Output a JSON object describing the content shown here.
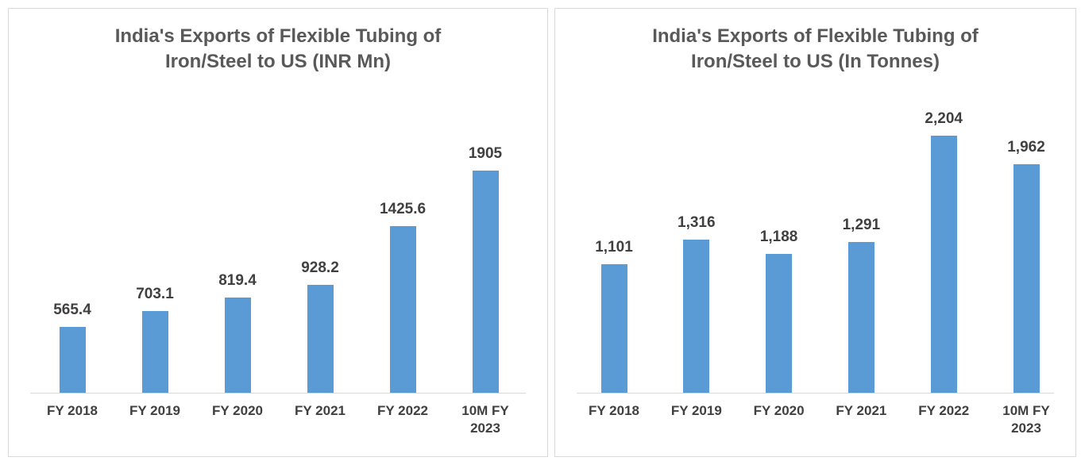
{
  "chart_data": [
    {
      "type": "bar",
      "title": "India's Exports of Flexible Tubing of Iron/Steel to US (INR Mn)",
      "categories": [
        "FY 2018",
        "FY 2019",
        "FY 2020",
        "FY 2021",
        "FY 2022",
        "10M FY 2023"
      ],
      "values": [
        565.4,
        703.1,
        819.4,
        928.2,
        1425.6,
        1905
      ],
      "color": "#5b9bd5",
      "ylim": [
        0,
        2000
      ]
    },
    {
      "type": "bar",
      "title": "India's Exports of Flexible Tubing of Iron/Steel to US (In Tonnes)",
      "categories": [
        "FY 2018",
        "FY 2019",
        "FY 2020",
        "FY 2021",
        "FY 2022",
        "10M FY 2023"
      ],
      "values": [
        1101,
        1316,
        1188,
        1291,
        2204,
        1962
      ],
      "value_labels": [
        "1,101",
        "1,316",
        "1,188",
        "1,291",
        "2,204",
        "1,962"
      ],
      "color": "#5b9bd5",
      "ylim": [
        0,
        2500
      ]
    }
  ]
}
